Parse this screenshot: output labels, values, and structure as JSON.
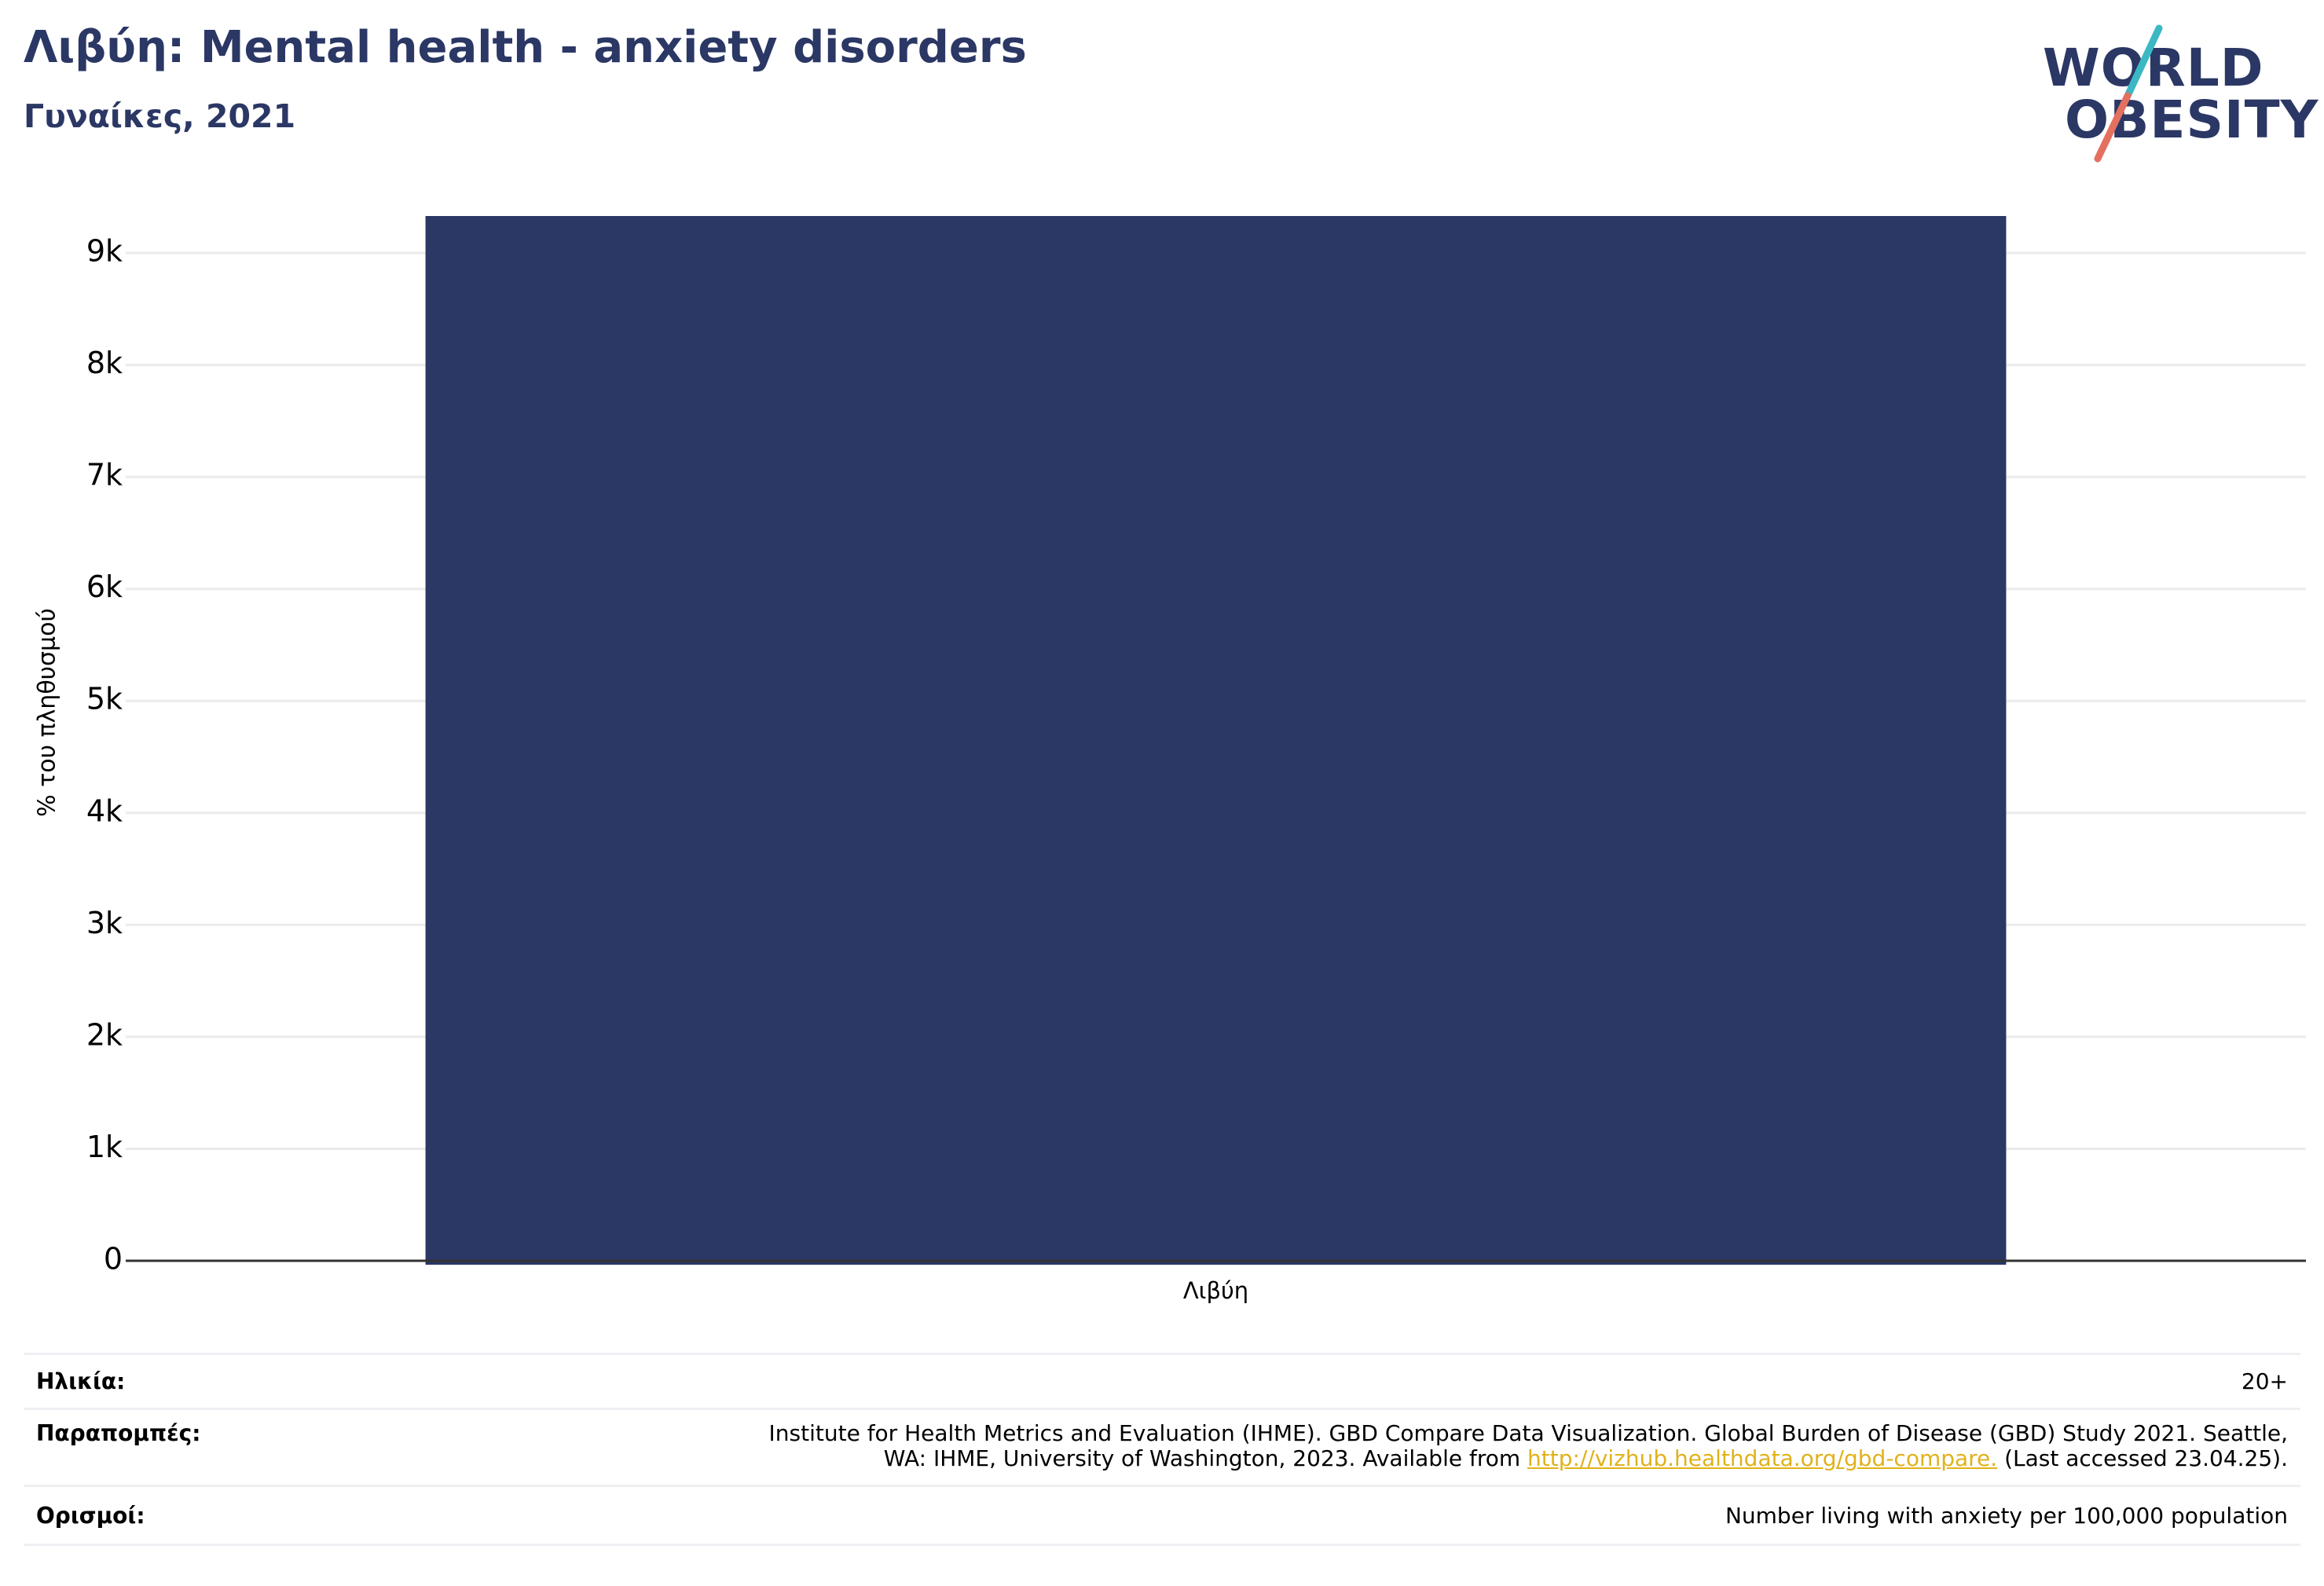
{
  "header": {
    "title": "Λιβύη: Mental health - anxiety disorders",
    "subtitle": "Γυναίκες, 2021"
  },
  "logo": {
    "line1": "WORLD",
    "line2": "OBESITY",
    "colors": {
      "text": "#2b3764",
      "slash_top": "#3bb8c3",
      "slash_bottom": "#e4705f"
    }
  },
  "chart_data": {
    "type": "bar",
    "categories": [
      "Λιβύη"
    ],
    "values": [
      9330
    ],
    "ylabel": "% του πληθυσμού",
    "ylim": [
      0,
      9330
    ],
    "yticks": [
      0,
      1000,
      2000,
      3000,
      4000,
      5000,
      6000,
      7000,
      8000,
      9000
    ],
    "ytick_labels": [
      "0",
      "1k",
      "2k",
      "3k",
      "4k",
      "5k",
      "6k",
      "7k",
      "8k",
      "9k"
    ],
    "grid": true,
    "colors": {
      "bar": "#2b3764",
      "grid": "#ebebeb",
      "axis": "#333333"
    }
  },
  "info": {
    "age_label": "Ηλικία:",
    "age_value": "20+",
    "refs_label": "Παραπομπές:",
    "refs_text_1": "Institute for Health Metrics and Evaluation (IHME). GBD Compare Data Visualization. Global Burden of Disease (GBD) Study 2021. Seattle,",
    "refs_text_2": "WA: IHME, University of Washington, 2023. Available from ",
    "refs_link": "http://vizhub.healthdata.org/gbd-compare.",
    "refs_text_3": " (Last accessed 23.04.25).",
    "defs_label": "Ορισμοί:",
    "defs_value": "Number living with anxiety per 100,000 population",
    "link_color": "#e0b21b"
  }
}
